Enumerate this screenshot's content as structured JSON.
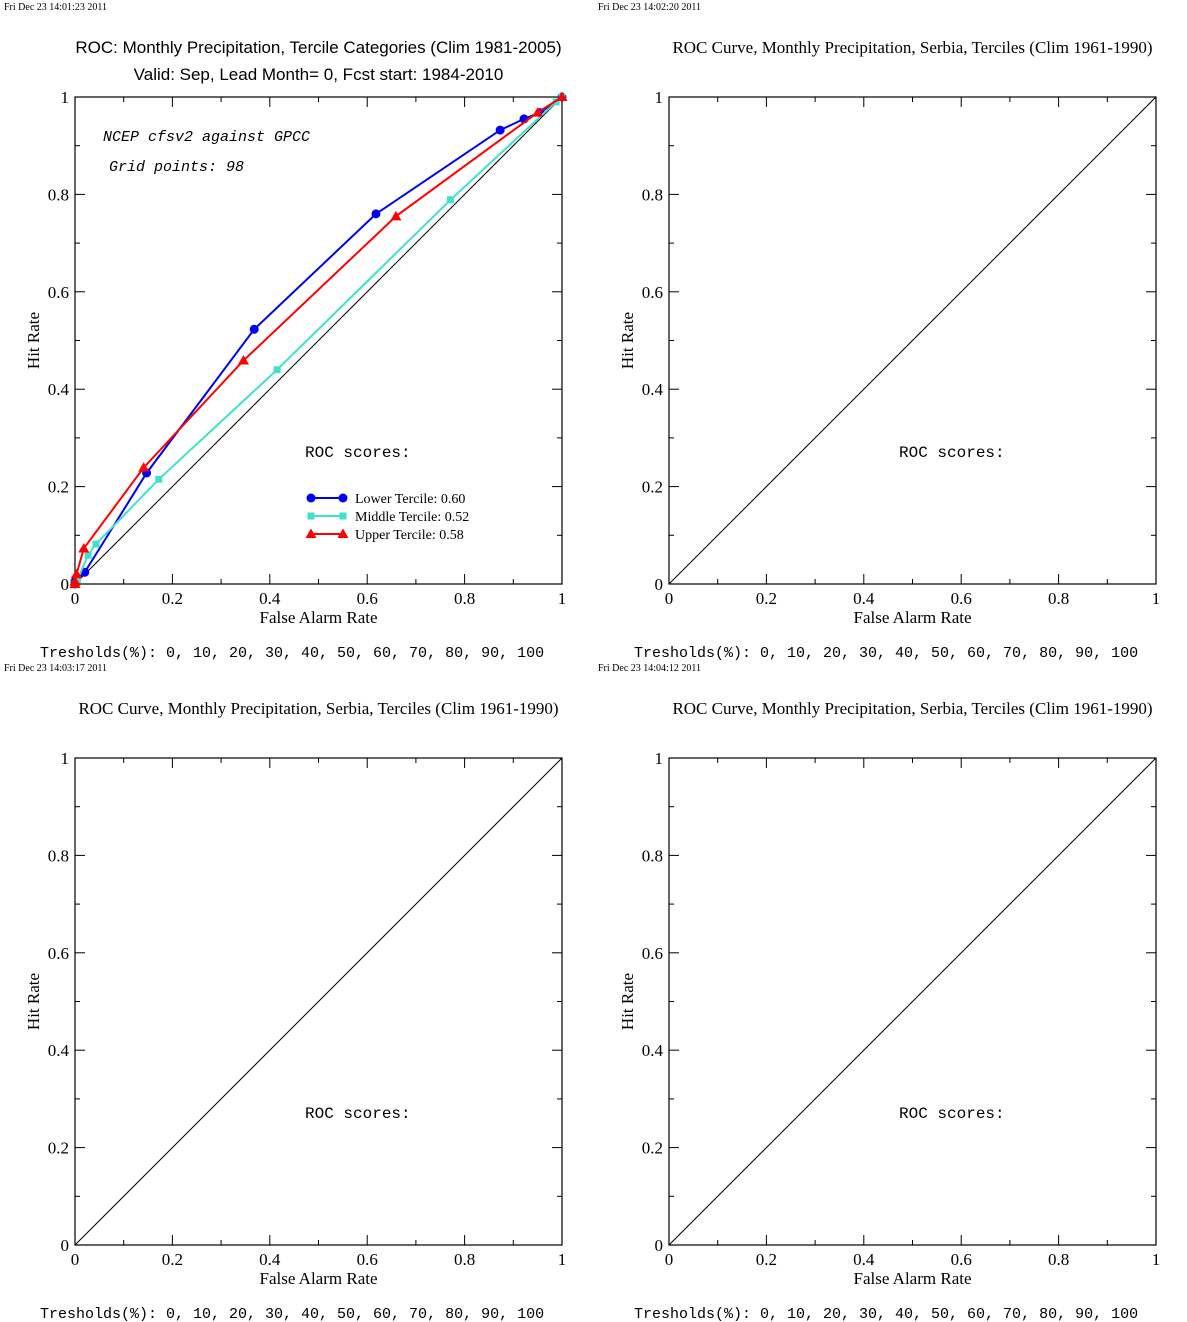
{
  "colors": {
    "lower": "#0000ee",
    "middle": "#40e0d0",
    "upper": "#ff0000",
    "axis": "#000000"
  },
  "chart_data": [
    {
      "type": "line",
      "timestamp": "Fri Dec 23 14:01:23 2011",
      "title_font": "sans",
      "title": "ROC: Monthly Precipitation, Tercile Categories (Clim 1981-2005)",
      "subtitle": "Valid: Sep, Lead Month= 0, Fcst start: 1984-2010",
      "xlabel": "False Alarm Rate",
      "ylabel": "Hit Rate",
      "xlim": [
        0,
        1
      ],
      "ylim": [
        0,
        1
      ],
      "xticks": [
        "0",
        "0.2",
        "0.4",
        "0.6",
        "0.8",
        "1"
      ],
      "yticks": [
        "0",
        "0.2",
        "0.4",
        "0.6",
        "0.8",
        "1"
      ],
      "grid": false,
      "diagonal": true,
      "annotations": [
        "NCEP cfsv2 against GPCC",
        "Grid points:   98"
      ],
      "scores_label": "ROC scores:",
      "legend_position": "lower-right",
      "series": [
        {
          "name": "Lower Tercile: 0.60",
          "marker": "circle",
          "color": "#0000ee",
          "x": [
            0.0,
            0.0,
            0.02,
            0.147,
            0.368,
            0.618,
            0.873,
            0.922,
            0.955,
            1.0
          ],
          "y": [
            0.0,
            0.005,
            0.024,
            0.228,
            0.523,
            0.76,
            0.932,
            0.955,
            0.968,
            1.0
          ]
        },
        {
          "name": "Middle Tercile: 0.52",
          "marker": "square",
          "color": "#40e0d0",
          "x": [
            0.0,
            0.005,
            0.027,
            0.043,
            0.172,
            0.415,
            0.771,
            0.988,
            1.0
          ],
          "y": [
            0.0,
            0.009,
            0.059,
            0.082,
            0.215,
            0.44,
            0.789,
            0.99,
            1.0
          ]
        },
        {
          "name": "Upper Tercile: 0.58",
          "marker": "triangle",
          "color": "#ff0000",
          "x": [
            0.0,
            0.0,
            0.003,
            0.018,
            0.141,
            0.346,
            0.659,
            0.95,
            1.0
          ],
          "y": [
            0.0,
            0.005,
            0.02,
            0.073,
            0.239,
            0.459,
            0.755,
            0.968,
            1.0
          ]
        }
      ],
      "footer": "Tresholds(%): 0, 10, 20, 30, 40, 50, 60, 70, 80, 90, 100"
    },
    {
      "type": "line",
      "timestamp": "Fri Dec 23 14:02:20 2011",
      "title_font": "serif",
      "title": "ROC Curve, Monthly Precipitation, Serbia, Terciles (Clim 1961-1990)",
      "subtitle": "",
      "xlabel": "False Alarm Rate",
      "ylabel": "Hit Rate",
      "xlim": [
        0,
        1
      ],
      "ylim": [
        0,
        1
      ],
      "xticks": [
        "0",
        "0.2",
        "0.4",
        "0.6",
        "0.8",
        "1"
      ],
      "yticks": [
        "0",
        "0.2",
        "0.4",
        "0.6",
        "0.8",
        "1"
      ],
      "grid": false,
      "diagonal": true,
      "annotations": [],
      "scores_label": "ROC scores:",
      "series": [],
      "footer": "Tresholds(%): 0, 10, 20, 30, 40, 50, 60, 70, 80, 90, 100"
    },
    {
      "type": "line",
      "timestamp": "Fri Dec 23 14:03:17 2011",
      "title_font": "serif",
      "title": "ROC Curve, Monthly Precipitation, Serbia, Terciles (Clim 1961-1990)",
      "subtitle": "",
      "xlabel": "False Alarm Rate",
      "ylabel": "Hit Rate",
      "xlim": [
        0,
        1
      ],
      "ylim": [
        0,
        1
      ],
      "xticks": [
        "0",
        "0.2",
        "0.4",
        "0.6",
        "0.8",
        "1"
      ],
      "yticks": [
        "0",
        "0.2",
        "0.4",
        "0.6",
        "0.8",
        "1"
      ],
      "grid": false,
      "diagonal": true,
      "annotations": [],
      "scores_label": "ROC scores:",
      "series": [],
      "footer": "Tresholds(%): 0, 10, 20, 30, 40, 50, 60, 70, 80, 90, 100"
    },
    {
      "type": "line",
      "timestamp": "Fri Dec 23 14:04:12 2011",
      "title_font": "serif",
      "title": "ROC Curve, Monthly Precipitation, Serbia, Terciles (Clim 1961-1990)",
      "subtitle": "",
      "xlabel": "False Alarm Rate",
      "ylabel": "Hit Rate",
      "xlim": [
        0,
        1
      ],
      "ylim": [
        0,
        1
      ],
      "xticks": [
        "0",
        "0.2",
        "0.4",
        "0.6",
        "0.8",
        "1"
      ],
      "yticks": [
        "0",
        "0.2",
        "0.4",
        "0.6",
        "0.8",
        "1"
      ],
      "grid": false,
      "diagonal": true,
      "annotations": [],
      "scores_label": "ROC scores:",
      "series": [],
      "footer": "Tresholds(%): 0, 10, 20, 30, 40, 50, 60, 70, 80, 90, 100"
    }
  ]
}
